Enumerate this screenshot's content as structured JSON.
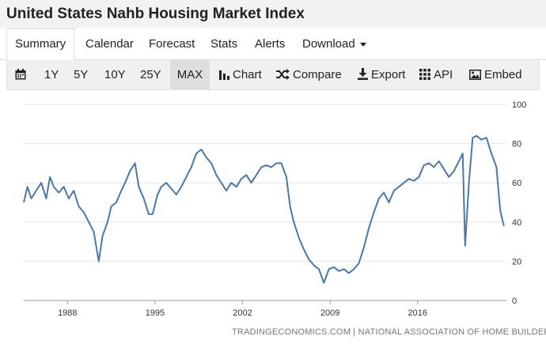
{
  "title": "United States Nahb Housing Market Index",
  "tabs": [
    "Summary",
    "Calendar",
    "Forecast",
    "Stats",
    "Alerts",
    "Download"
  ],
  "toolbar": {
    "calendar_icon": "calendar-icon",
    "ranges": [
      "1Y",
      "5Y",
      "10Y",
      "25Y",
      "MAX"
    ],
    "active_range": "MAX",
    "chart": "Chart",
    "compare": "Compare",
    "export": "Export",
    "api": "API",
    "embed": "Embed"
  },
  "source": "TRADINGECONOMICS.COM | NATIONAL ASSOCIATION OF HOME BUILDERS",
  "colors": {
    "line": "#4a78a8",
    "toolbar_bg": "#f0f0f0",
    "grid": "#e6e6e6"
  },
  "chart_data": {
    "type": "line",
    "title": "United States Nahb Housing Market Index",
    "xlabel": "",
    "ylabel": "",
    "x_ticks": [
      "1988",
      "1995",
      "2002",
      "2009",
      "2016"
    ],
    "y_ticks": [
      0,
      20,
      40,
      60,
      80,
      100
    ],
    "ylim": [
      0,
      100
    ],
    "xlim": [
      1985,
      2023.6
    ],
    "grid": "horizontal",
    "y_axis_side": "right",
    "series": [
      {
        "name": "NAHB Housing Market Index",
        "x": [
          1985.0,
          1985.3,
          1985.6,
          1986.0,
          1986.4,
          1986.8,
          1987.1,
          1987.4,
          1987.8,
          1988.2,
          1988.6,
          1989.0,
          1989.4,
          1989.8,
          1990.2,
          1990.6,
          1991.0,
          1991.3,
          1991.7,
          1992.0,
          1992.4,
          1992.8,
          1993.1,
          1993.5,
          1993.9,
          1994.2,
          1994.6,
          1995.0,
          1995.3,
          1995.7,
          1996.0,
          1996.4,
          1996.8,
          1997.2,
          1997.6,
          1998.0,
          1998.4,
          1998.8,
          1999.2,
          1999.6,
          2000.0,
          2000.4,
          2000.8,
          2001.2,
          2001.6,
          2002.0,
          2002.4,
          2002.8,
          2003.2,
          2003.6,
          2004.0,
          2004.4,
          2004.8,
          2005.2,
          2005.6,
          2006.0,
          2006.3,
          2006.6,
          2007.0,
          2007.4,
          2007.8,
          2008.2,
          2008.6,
          2009.0,
          2009.4,
          2009.8,
          2010.2,
          2010.6,
          2011.0,
          2011.4,
          2011.8,
          2012.2,
          2012.6,
          2013.0,
          2013.4,
          2013.8,
          2014.2,
          2014.6,
          2015.0,
          2015.4,
          2015.8,
          2016.2,
          2016.6,
          2017.0,
          2017.4,
          2017.8,
          2018.2,
          2018.6,
          2019.0,
          2019.4,
          2019.8,
          2020.1,
          2020.3,
          2020.6,
          2020.9,
          2021.2,
          2021.6,
          2022.0,
          2022.4,
          2022.8,
          2023.1,
          2023.4
        ],
        "values": [
          50,
          58,
          52,
          56,
          60,
          52,
          63,
          58,
          55,
          58,
          52,
          56,
          48,
          45,
          40,
          35,
          20,
          33,
          40,
          48,
          50,
          56,
          60,
          66,
          70,
          58,
          52,
          44,
          44,
          54,
          58,
          60,
          57,
          54,
          58,
          63,
          68,
          75,
          77,
          73,
          70,
          64,
          60,
          56,
          60,
          58,
          62,
          64,
          60,
          64,
          68,
          69,
          68,
          70,
          70,
          63,
          48,
          40,
          32,
          26,
          21,
          18,
          16,
          9,
          16,
          17,
          15,
          16,
          14,
          16,
          19,
          27,
          37,
          45,
          52,
          55,
          50,
          56,
          58,
          60,
          62,
          61,
          63,
          69,
          70,
          68,
          71,
          67,
          63,
          66,
          71,
          75,
          28,
          60,
          83,
          84,
          82,
          83,
          75,
          68,
          46,
          38
        ]
      }
    ]
  }
}
